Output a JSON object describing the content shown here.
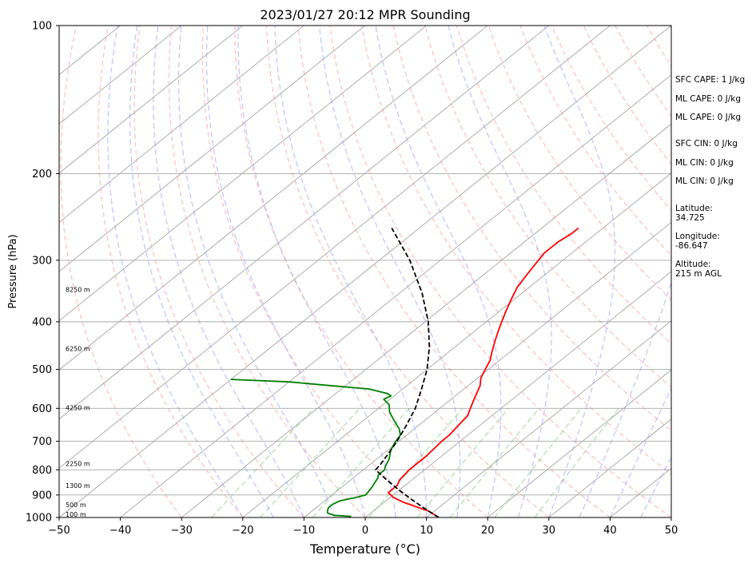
{
  "chart_data": {
    "type": "line",
    "title": "2023/01/27 20:12 MPR Sounding",
    "xlabel": "Temperature (°C)",
    "ylabel": "Pressure (hPa)",
    "xlim": [
      -50,
      50
    ],
    "ylim": [
      1000,
      100
    ],
    "yscale": "log",
    "skew": "skew-T log-P",
    "x_ticks": [
      "−50",
      "−40",
      "−30",
      "−20",
      "−10",
      "0",
      "10",
      "20",
      "30",
      "40",
      "50"
    ],
    "y_ticks": [
      "100",
      "200",
      "300",
      "400",
      "500",
      "600",
      "700",
      "800",
      "900",
      "1000"
    ],
    "height_labels": [
      {
        "label": "100 m",
        "pressure": 988
      },
      {
        "label": "500 m",
        "pressure": 945
      },
      {
        "label": "1300 m",
        "pressure": 865
      },
      {
        "label": "2250 m",
        "pressure": 780
      },
      {
        "label": "4250 m",
        "pressure": 600
      },
      {
        "label": "6250 m",
        "pressure": 455
      },
      {
        "label": "8250 m",
        "pressure": 345
      }
    ],
    "series": [
      {
        "color": "#ff0000",
        "style": "solid",
        "points": [
          [
            1000,
            12.0
          ],
          [
            990,
            11.0
          ],
          [
            970,
            9.0
          ],
          [
            950,
            6.0
          ],
          [
            930,
            3.0
          ],
          [
            910,
            0.5
          ],
          [
            890,
            -1.3
          ],
          [
            860,
            -1.3
          ],
          [
            840,
            -2.0
          ],
          [
            800,
            -2.5
          ],
          [
            780,
            -2.5
          ],
          [
            750,
            -2.5
          ],
          [
            700,
            -3.0
          ],
          [
            680,
            -3.0
          ],
          [
            650,
            -3.5
          ],
          [
            620,
            -4.0
          ],
          [
            600,
            -5.0
          ],
          [
            570,
            -6.5
          ],
          [
            540,
            -8.0
          ],
          [
            520,
            -9.5
          ],
          [
            500,
            -10.5
          ],
          [
            480,
            -11.5
          ],
          [
            460,
            -13.0
          ],
          [
            440,
            -14.5
          ],
          [
            420,
            -16.0
          ],
          [
            400,
            -17.5
          ],
          [
            380,
            -19.0
          ],
          [
            360,
            -20.5
          ],
          [
            340,
            -22.0
          ],
          [
            320,
            -23.0
          ],
          [
            300,
            -24.0
          ],
          [
            290,
            -24.5
          ],
          [
            275,
            -24.5
          ],
          [
            265,
            -24.0
          ],
          [
            258,
            -24.0
          ]
        ]
      },
      {
        "color": "#008000",
        "style": "solid",
        "points": [
          [
            995,
            -2.5
          ],
          [
            990,
            -5.5
          ],
          [
            980,
            -7.0
          ],
          [
            970,
            -7.5
          ],
          [
            955,
            -8.0
          ],
          [
            940,
            -8.0
          ],
          [
            925,
            -7.5
          ],
          [
            910,
            -5.5
          ],
          [
            900,
            -4.5
          ],
          [
            870,
            -5.0
          ],
          [
            850,
            -5.5
          ],
          [
            830,
            -6.0
          ],
          [
            820,
            -6.5
          ],
          [
            800,
            -6.5
          ],
          [
            790,
            -7.0
          ],
          [
            760,
            -8.0
          ],
          [
            730,
            -9.5
          ],
          [
            700,
            -10.5
          ],
          [
            680,
            -11.0
          ],
          [
            660,
            -12.5
          ],
          [
            650,
            -13.5
          ],
          [
            630,
            -15.5
          ],
          [
            610,
            -17.5
          ],
          [
            590,
            -19.0
          ],
          [
            575,
            -21.0
          ],
          [
            566,
            -20.5
          ],
          [
            560,
            -21.5
          ],
          [
            548,
            -25.5
          ],
          [
            540,
            -32.0
          ],
          [
            530,
            -40.0
          ],
          [
            524,
            -50.0
          ]
        ]
      },
      {
        "color": "#000000",
        "style": "dashed",
        "points": [
          [
            1000,
            12.0
          ],
          [
            960,
            8.0
          ],
          [
            920,
            4.0
          ],
          [
            880,
            0.0
          ],
          [
            840,
            -4.0
          ],
          [
            800,
            -8.0
          ],
          [
            780,
            -8.3
          ],
          [
            750,
            -9.0
          ],
          [
            700,
            -10.3
          ],
          [
            650,
            -12.0
          ],
          [
            600,
            -14.0
          ],
          [
            550,
            -16.8
          ],
          [
            500,
            -20.0
          ],
          [
            450,
            -24.2
          ],
          [
            400,
            -29.5
          ],
          [
            350,
            -36.3
          ],
          [
            300,
            -45.0
          ],
          [
            258,
            -54.5
          ]
        ]
      }
    ],
    "background_lines": {
      "isotherms_step": 10,
      "dry_adiabats": "red dashed",
      "moist_adiabats": "blue dashed",
      "mixing_ratio_lines": "green dashed",
      "grid": true
    },
    "stats": [
      "SFC CAPE: 1 J/kg",
      "ML CAPE: 0 J/kg",
      "ML CAPE: 0 J/kg",
      "SFC CIN: 0 J/kg",
      "ML CIN: 0 J/kg",
      "ML CIN: 0 J/kg"
    ],
    "location": {
      "latitude": "Latitude:\n34.725",
      "longitude": "Longitude:\n-86.647",
      "altitude": "Altitude:\n215 m AGL"
    }
  }
}
